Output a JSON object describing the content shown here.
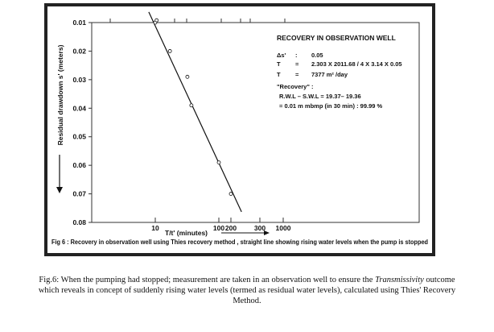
{
  "chart_data": {
    "type": "scatter",
    "figure_label": "Fig 6 : Recovery in observation well using Thies recovery method , straight line showing rising water levels when the pump is stopped",
    "xlabel": "T/t' (minutes)",
    "ylabel": "Residual drawdown s' (meters)",
    "x_ticks": [
      10,
      100,
      200,
      300,
      1000
    ],
    "x_tick_labels": [
      "10",
      "100",
      "200",
      "300",
      "1000"
    ],
    "y_ticks": [
      "0.01",
      "0.02",
      "0.03",
      "0.04",
      "0.05",
      "0.06",
      "0.07",
      "0.08"
    ],
    "ylim": [
      0.01,
      0.08
    ],
    "y_inverted": true,
    "grid": false,
    "points": [
      [
        10,
        0.01
      ],
      [
        10.5,
        0.0092
      ],
      [
        17,
        0.02
      ],
      [
        32,
        0.029
      ],
      [
        37,
        0.039
      ],
      [
        100,
        0.059
      ],
      [
        200,
        0.07
      ]
    ],
    "fit_line": [
      [
        7.9,
        0.0063
      ],
      [
        232,
        0.0763
      ]
    ],
    "annotation": {
      "title": "RECOVERY IN OBSERVATION WELL",
      "lines": [
        {
          "a": "Δs'",
          "b": ":",
          "c": "0.05"
        },
        {
          "a": "T",
          "b": "=",
          "c": "2.303 X 2011.68 / 4 X 3.14 X 0.05"
        },
        {
          "a": "T",
          "b": "=",
          "c": "7377 m² /day"
        }
      ],
      "recovery_label": "\"Recovery\" :",
      "recovery_line1": "R.W.L –  S.W.L = 19.37– 19.36",
      "recovery_line2": "=  0.01 m mbmp (in 30 min) : 99.99 %"
    }
  },
  "caption": {
    "before": "Fig.6: When the pumping had stopped; measurement are taken in an observation well to ensure the ",
    "italic": "Transmissivity",
    "after": " outcome which reveals in concept of suddenly rising water levels (termed as residual water levels), calculated using Thies' Recovery Method."
  }
}
